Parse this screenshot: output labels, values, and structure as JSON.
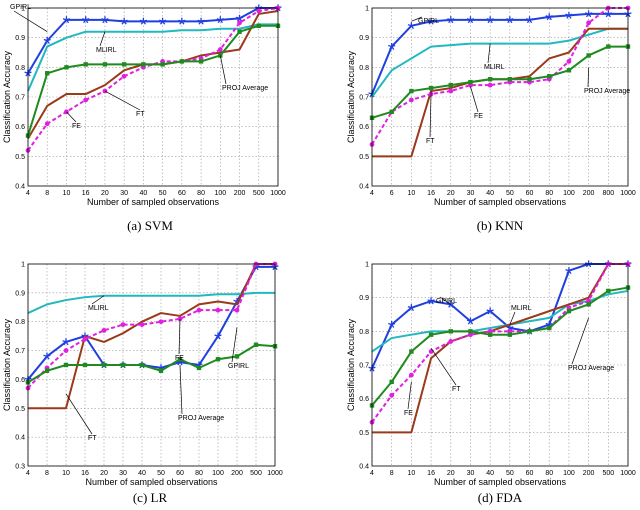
{
  "figure": {
    "series_colors": {
      "GPIRL": "#1f3fe0",
      "MLIRL": "#22b8c0",
      "FT": "#9a3a1a",
      "FE": "#e020e0",
      "PROJ Average": "#1f8a1f"
    }
  },
  "chart_data": [
    {
      "type": "line",
      "caption": "(a)  SVM",
      "xlabel": "Number of sampled observations",
      "ylabel": "Classification Accuracy",
      "categories": [
        "4",
        "8",
        "10",
        "16",
        "20",
        "30",
        "40",
        "50",
        "60",
        "80",
        "100",
        "200",
        "500",
        "1000"
      ],
      "ylim": [
        0.4,
        1.0
      ],
      "yticks": [
        "0.4",
        "0.5",
        "0.6",
        "0.7",
        "0.8",
        "0.9",
        "1"
      ],
      "series": [
        {
          "name": "GPIRL",
          "values": [
            0.78,
            0.89,
            0.96,
            0.96,
            0.96,
            0.955,
            0.955,
            0.955,
            0.955,
            0.955,
            0.96,
            0.965,
            1.0,
            1.0
          ]
        },
        {
          "name": "MLIRL",
          "values": [
            0.72,
            0.87,
            0.9,
            0.92,
            0.92,
            0.92,
            0.92,
            0.92,
            0.925,
            0.925,
            0.93,
            0.93,
            0.945,
            0.945
          ]
        },
        {
          "name": "FT",
          "values": [
            0.56,
            0.67,
            0.71,
            0.71,
            0.74,
            0.79,
            0.81,
            0.81,
            0.82,
            0.84,
            0.85,
            0.86,
            0.98,
            0.99
          ]
        },
        {
          "name": "FE",
          "values": [
            0.52,
            0.61,
            0.65,
            0.69,
            0.72,
            0.77,
            0.8,
            0.82,
            0.82,
            0.83,
            0.86,
            0.95,
            0.99,
            1.0
          ]
        },
        {
          "name": "PROJ Average",
          "values": [
            0.57,
            0.78,
            0.8,
            0.81,
            0.81,
            0.81,
            0.81,
            0.81,
            0.82,
            0.82,
            0.84,
            0.92,
            0.94,
            0.94
          ]
        }
      ],
      "annotations": [
        "GPIRL",
        "MLIRL",
        "PROJ Average",
        "FT",
        "FE"
      ]
    },
    {
      "type": "line",
      "caption": "(b)  KNN",
      "xlabel": "Number of sampled observations",
      "ylabel": "Classification Accuracy",
      "categories": [
        "4",
        "6",
        "10",
        "16",
        "20",
        "30",
        "40",
        "50",
        "60",
        "80",
        "100",
        "200",
        "800",
        "1000"
      ],
      "ylim": [
        0.4,
        1.0
      ],
      "yticks": [
        "0.4",
        "0.5",
        "0.6",
        "0.7",
        "0.8",
        "0.9",
        "1"
      ],
      "series": [
        {
          "name": "GPIRL",
          "values": [
            0.71,
            0.87,
            0.94,
            0.955,
            0.96,
            0.96,
            0.96,
            0.96,
            0.96,
            0.97,
            0.975,
            0.98,
            0.98,
            0.98
          ]
        },
        {
          "name": "MLIRL",
          "values": [
            0.7,
            0.79,
            0.83,
            0.87,
            0.875,
            0.88,
            0.88,
            0.88,
            0.88,
            0.88,
            0.89,
            0.91,
            0.93,
            0.93
          ]
        },
        {
          "name": "FT",
          "values": [
            0.5,
            0.5,
            0.5,
            0.72,
            0.73,
            0.75,
            0.76,
            0.76,
            0.77,
            0.83,
            0.85,
            0.93,
            0.93,
            0.93
          ]
        },
        {
          "name": "FE",
          "values": [
            0.54,
            0.65,
            0.69,
            0.71,
            0.72,
            0.74,
            0.74,
            0.75,
            0.75,
            0.76,
            0.82,
            0.95,
            1.0,
            1.0
          ]
        },
        {
          "name": "PROJ Average",
          "values": [
            0.63,
            0.65,
            0.72,
            0.73,
            0.74,
            0.75,
            0.76,
            0.76,
            0.76,
            0.77,
            0.79,
            0.84,
            0.87,
            0.87
          ]
        }
      ],
      "annotations": [
        "GPIRL",
        "MLIRL",
        "PROJ Average",
        "FE",
        "FT"
      ]
    },
    {
      "type": "line",
      "caption": "(c)  LR",
      "xlabel": "Number of sampled observations",
      "ylabel": "Classification Accuracy",
      "categories": [
        "4",
        "8",
        "10",
        "16",
        "20",
        "30",
        "40",
        "50",
        "60",
        "80",
        "100",
        "200",
        "500",
        "1000"
      ],
      "ylim": [
        0.3,
        1.0
      ],
      "yticks": [
        "0.3",
        "0.4",
        "0.5",
        "0.6",
        "0.7",
        "0.8",
        "0.9",
        "1"
      ],
      "series": [
        {
          "name": "GPIRL",
          "values": [
            0.6,
            0.68,
            0.73,
            0.75,
            0.65,
            0.65,
            0.65,
            0.64,
            0.66,
            0.65,
            0.75,
            0.87,
            0.99,
            0.99
          ]
        },
        {
          "name": "MLIRL",
          "values": [
            0.83,
            0.86,
            0.875,
            0.885,
            0.89,
            0.89,
            0.89,
            0.89,
            0.89,
            0.89,
            0.895,
            0.895,
            0.9,
            0.9
          ]
        },
        {
          "name": "FT",
          "values": [
            0.5,
            0.5,
            0.5,
            0.75,
            0.73,
            0.76,
            0.8,
            0.83,
            0.82,
            0.86,
            0.87,
            0.86,
            1.0,
            1.0
          ]
        },
        {
          "name": "FE",
          "values": [
            0.57,
            0.64,
            0.7,
            0.74,
            0.77,
            0.79,
            0.79,
            0.8,
            0.81,
            0.84,
            0.84,
            0.84,
            1.0,
            1.0
          ]
        },
        {
          "name": "PROJ Average",
          "values": [
            0.59,
            0.63,
            0.65,
            0.65,
            0.65,
            0.65,
            0.65,
            0.63,
            0.67,
            0.64,
            0.67,
            0.68,
            0.72,
            0.715
          ]
        }
      ],
      "annotations": [
        "MLIRL",
        "FE",
        "GPIRL",
        "PROJ Average",
        "FT"
      ]
    },
    {
      "type": "line",
      "caption": "(d)  FDA",
      "xlabel": "Number of sampled observations",
      "ylabel": "Classification Accuracy",
      "categories": [
        "4",
        "8",
        "10",
        "16",
        "20",
        "30",
        "40",
        "50",
        "60",
        "80",
        "100",
        "200",
        "500",
        "1000"
      ],
      "ylim": [
        0.4,
        1.0
      ],
      "yticks": [
        "0.4",
        "0.5",
        "0.6",
        "0.7",
        "0.8",
        "0.9",
        "1"
      ],
      "series": [
        {
          "name": "GPIRL",
          "values": [
            0.69,
            0.82,
            0.87,
            0.89,
            0.88,
            0.83,
            0.86,
            0.81,
            0.8,
            0.82,
            0.98,
            1.0,
            1.0,
            1.0
          ]
        },
        {
          "name": "MLIRL",
          "values": [
            0.74,
            0.78,
            0.79,
            0.8,
            0.8,
            0.8,
            0.81,
            0.82,
            0.83,
            0.84,
            0.88,
            0.89,
            0.91,
            0.92
          ]
        },
        {
          "name": "FT",
          "values": [
            0.5,
            0.5,
            0.5,
            0.72,
            0.77,
            0.79,
            0.8,
            0.82,
            0.84,
            0.86,
            0.88,
            0.9,
            1.0,
            1.0
          ]
        },
        {
          "name": "FE",
          "values": [
            0.53,
            0.61,
            0.67,
            0.74,
            0.77,
            0.79,
            0.8,
            0.8,
            0.8,
            0.81,
            0.87,
            0.89,
            1.0,
            1.0
          ]
        },
        {
          "name": "PROJ Average",
          "values": [
            0.58,
            0.65,
            0.74,
            0.79,
            0.8,
            0.8,
            0.79,
            0.79,
            0.8,
            0.81,
            0.86,
            0.88,
            0.92,
            0.93
          ]
        }
      ],
      "annotations": [
        "GPIRL",
        "MLIRL",
        "PROJ Average",
        "FT",
        "FE"
      ]
    }
  ]
}
